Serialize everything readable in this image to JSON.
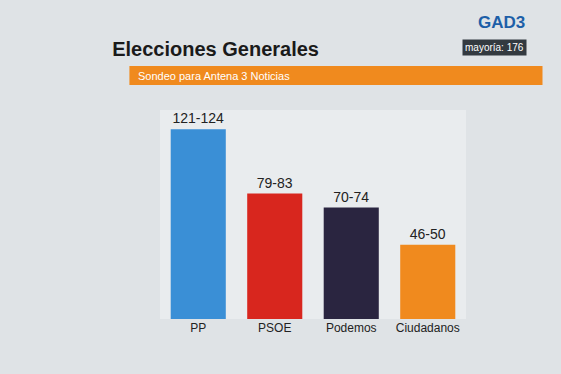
{
  "chart_data": {
    "type": "bar",
    "title": "Elecciones Generales",
    "subtitle": "Sondeo para Antena 3 Noticias",
    "annotations": [
      "GAD3",
      "mayoría: 176"
    ],
    "categories": [
      "PP",
      "PSOE",
      "Podemos",
      "Ciudadanos"
    ],
    "values": [
      122.5,
      81,
      72,
      48
    ],
    "value_labels": [
      "121-124",
      "79-83",
      "70-74",
      "46-50"
    ],
    "colors": [
      "#3a8fd6",
      "#d8261e",
      "#2a2540",
      "#f08a1e"
    ],
    "ylim": [
      0,
      135
    ],
    "data_labels": true,
    "tick_labels": "x",
    "grid": false
  }
}
